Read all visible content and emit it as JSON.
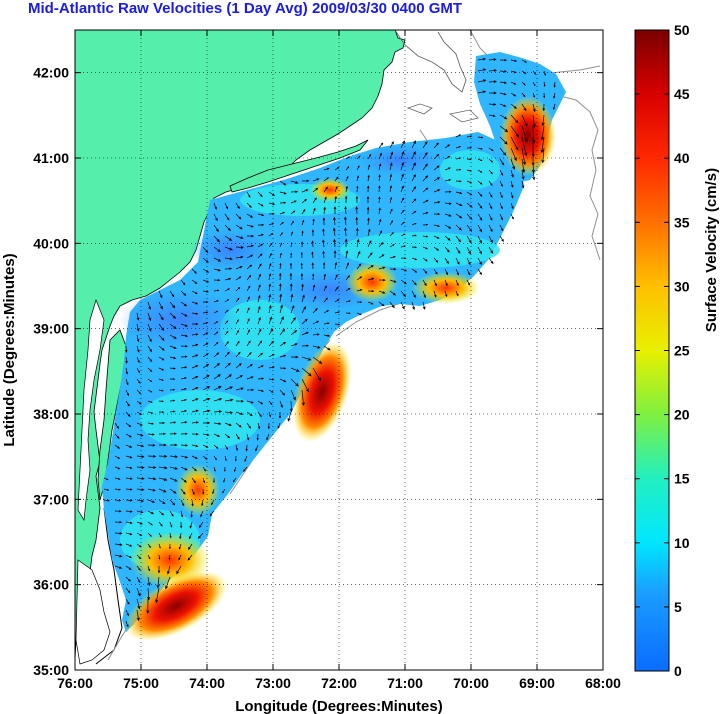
{
  "title": "Mid-Atlantic Raw Velocities (1 Day Avg) 2009/03/30 0400 GMT",
  "map": {
    "xlabel": "Longitude (Degrees:Minutes)",
    "ylabel": "Latitude (Degrees:Minutes)",
    "lon_range": [
      -76,
      -68
    ],
    "lat_range": [
      35,
      42.5
    ],
    "x_ticks": [
      {
        "value": -76,
        "label": "76:00"
      },
      {
        "value": -75,
        "label": "75:00"
      },
      {
        "value": -74,
        "label": "74:00"
      },
      {
        "value": -73,
        "label": "73:00"
      },
      {
        "value": -72,
        "label": "72:00"
      },
      {
        "value": -71,
        "label": "71:00"
      },
      {
        "value": -70,
        "label": "70:00"
      },
      {
        "value": -69,
        "label": "69:00"
      },
      {
        "value": -68,
        "label": "68:00"
      }
    ],
    "y_ticks": [
      {
        "value": 35,
        "label": "35:00"
      },
      {
        "value": 36,
        "label": "36:00"
      },
      {
        "value": 37,
        "label": "37:00"
      },
      {
        "value": 38,
        "label": "38:00"
      },
      {
        "value": 39,
        "label": "39:00"
      },
      {
        "value": 40,
        "label": "40:00"
      },
      {
        "value": 41,
        "label": "41:00"
      },
      {
        "value": 42,
        "label": "42:00"
      }
    ],
    "grid": true,
    "land_color": "#55eeaa",
    "ocean_color": "#ffffff"
  },
  "colorbar": {
    "label": "Surface Velocity (cm/s)",
    "range": [
      0,
      50
    ],
    "ticks": [
      {
        "value": 0,
        "label": "0"
      },
      {
        "value": 5,
        "label": "5"
      },
      {
        "value": 10,
        "label": "10"
      },
      {
        "value": 15,
        "label": "15"
      },
      {
        "value": 20,
        "label": "20"
      },
      {
        "value": 25,
        "label": "25"
      },
      {
        "value": 30,
        "label": "30"
      },
      {
        "value": 35,
        "label": "35"
      },
      {
        "value": 40,
        "label": "40"
      },
      {
        "value": 45,
        "label": "45"
      },
      {
        "value": 50,
        "label": "50"
      }
    ],
    "colormap": "jet"
  }
}
